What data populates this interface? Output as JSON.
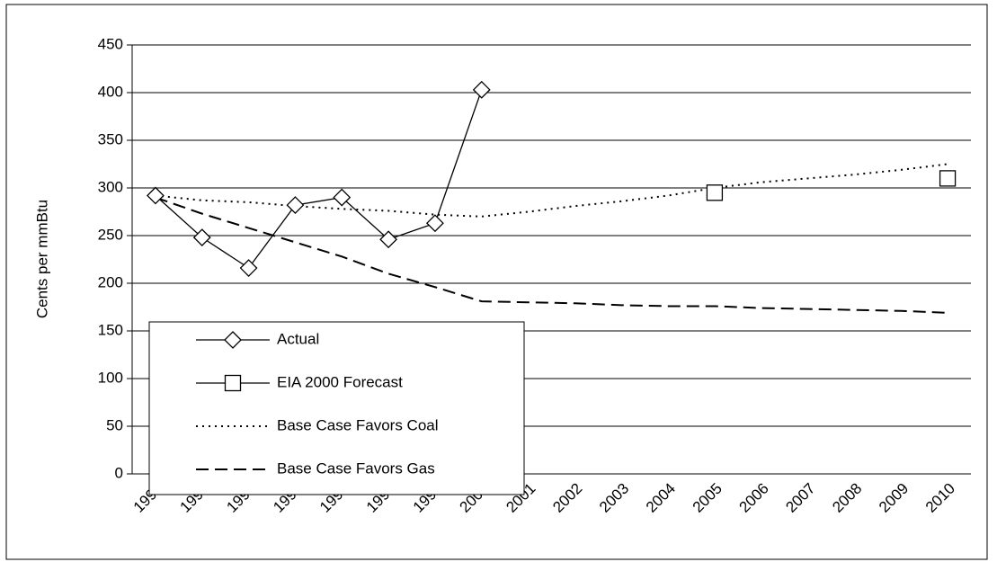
{
  "chart_data": {
    "type": "line",
    "ylabel": "Cents per mmBtu",
    "categories": [
      "1993",
      "1994",
      "1995",
      "1996",
      "1997",
      "1998",
      "1999",
      "2000",
      "2001",
      "2002",
      "2003",
      "2004",
      "2005",
      "2006",
      "2007",
      "2008",
      "2009",
      "2010"
    ],
    "series": [
      {
        "name": "Actual",
        "color": "#000000",
        "line": "solid",
        "marker": "diamond",
        "values": [
          292,
          248,
          216,
          282,
          290,
          246,
          263,
          403,
          null,
          null,
          null,
          null,
          null,
          null,
          null,
          null,
          null,
          null
        ]
      },
      {
        "name": "EIA 2000 Forecast",
        "color": "#000000",
        "line": "solid",
        "marker": "square",
        "values": [
          null,
          null,
          null,
          null,
          null,
          null,
          null,
          null,
          null,
          null,
          null,
          null,
          295,
          null,
          null,
          null,
          null,
          310
        ]
      },
      {
        "name": "Base Case Favors Coal",
        "color": "#000000",
        "line": "dotted",
        "marker": "none",
        "values": [
          292,
          287,
          285,
          281,
          278,
          276,
          272,
          270,
          275,
          281,
          286,
          292,
          300,
          306,
          310,
          314,
          319,
          325
        ]
      },
      {
        "name": "Base Case Favors Gas",
        "color": "#000000",
        "line": "dashed",
        "marker": "none",
        "values": [
          290,
          273,
          258,
          243,
          228,
          210,
          196,
          181,
          180,
          179,
          177,
          176,
          176,
          174,
          173,
          172,
          171,
          169
        ]
      }
    ],
    "ylim": [
      0,
      450
    ],
    "yticks": [
      0,
      50,
      100,
      150,
      200,
      250,
      300,
      350,
      400,
      450
    ],
    "grid": true,
    "legend": "lower left"
  }
}
